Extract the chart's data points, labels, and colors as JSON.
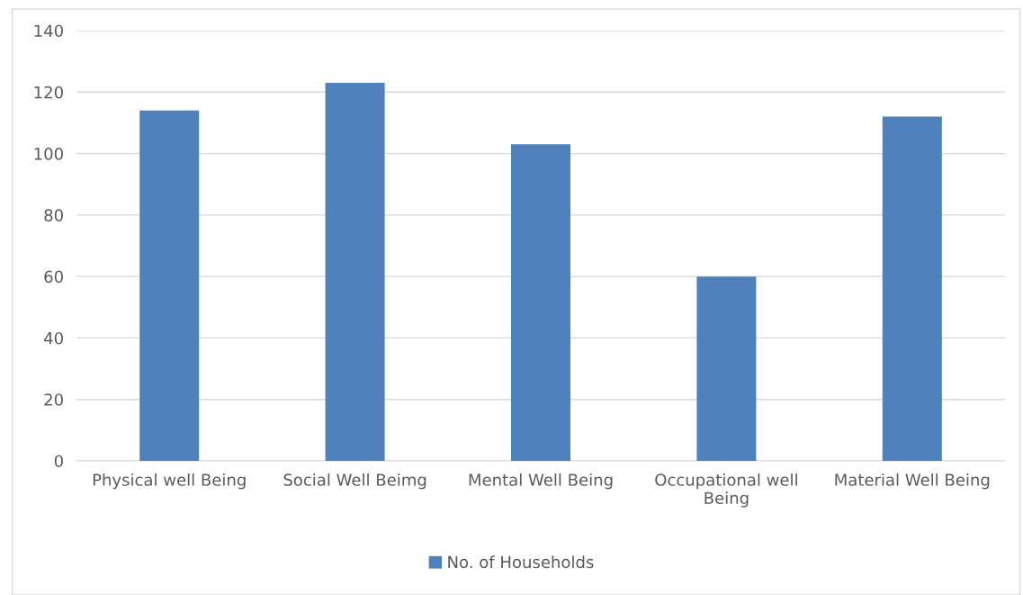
{
  "chart_data": {
    "type": "bar",
    "categories": [
      "Physical well Being",
      "Social Well Beimg",
      "Mental Well Being",
      "Occupational well Being",
      "Material Well Being"
    ],
    "series": [
      {
        "name": "No. of Households",
        "color": "#4f81bd",
        "values": [
          114,
          123,
          103,
          60,
          112
        ]
      }
    ],
    "ylim": [
      0,
      140
    ],
    "yticks": [
      0,
      20,
      40,
      60,
      80,
      100,
      120,
      140
    ],
    "grid": "y",
    "legend": "bottom"
  }
}
